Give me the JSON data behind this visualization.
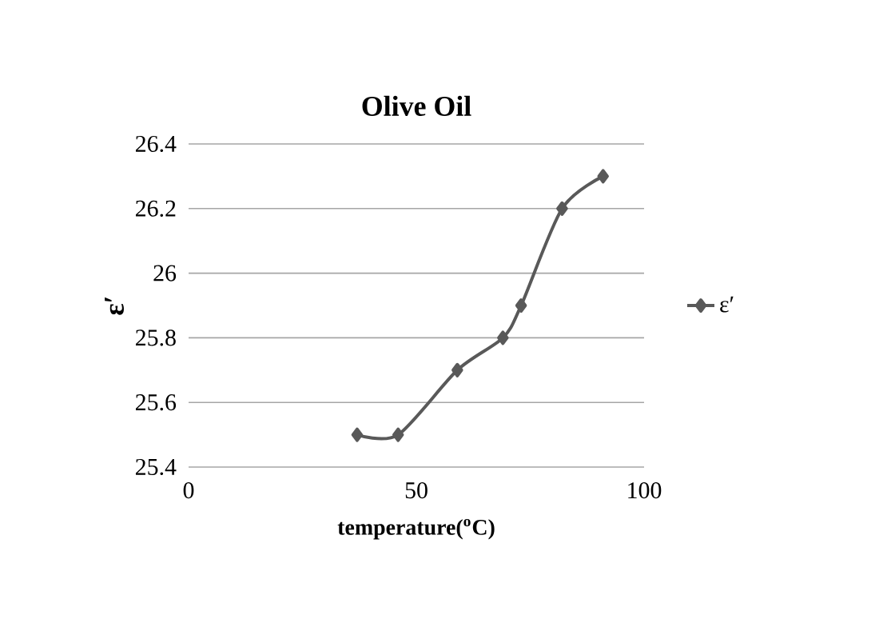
{
  "chart_data": {
    "type": "line",
    "title": "Olive Oil",
    "xlabel": "temperature($^{o}$C)",
    "ylabel": "ε′",
    "x": [
      37,
      46,
      59,
      69,
      73,
      82,
      91
    ],
    "series": [
      {
        "name": "ε′",
        "color": "#595959",
        "values": [
          25.5,
          25.5,
          25.7,
          25.8,
          25.9,
          26.2,
          26.3
        ]
      }
    ],
    "xlim": [
      0,
      100
    ],
    "xticks": [
      0,
      50,
      100
    ],
    "ylim": [
      25.4,
      26.4
    ],
    "yticks": [
      25.4,
      25.6,
      25.8,
      26,
      26.2,
      26.4
    ],
    "grid": "y",
    "legend": "right",
    "marker": "diamond",
    "line_style": "solid"
  }
}
